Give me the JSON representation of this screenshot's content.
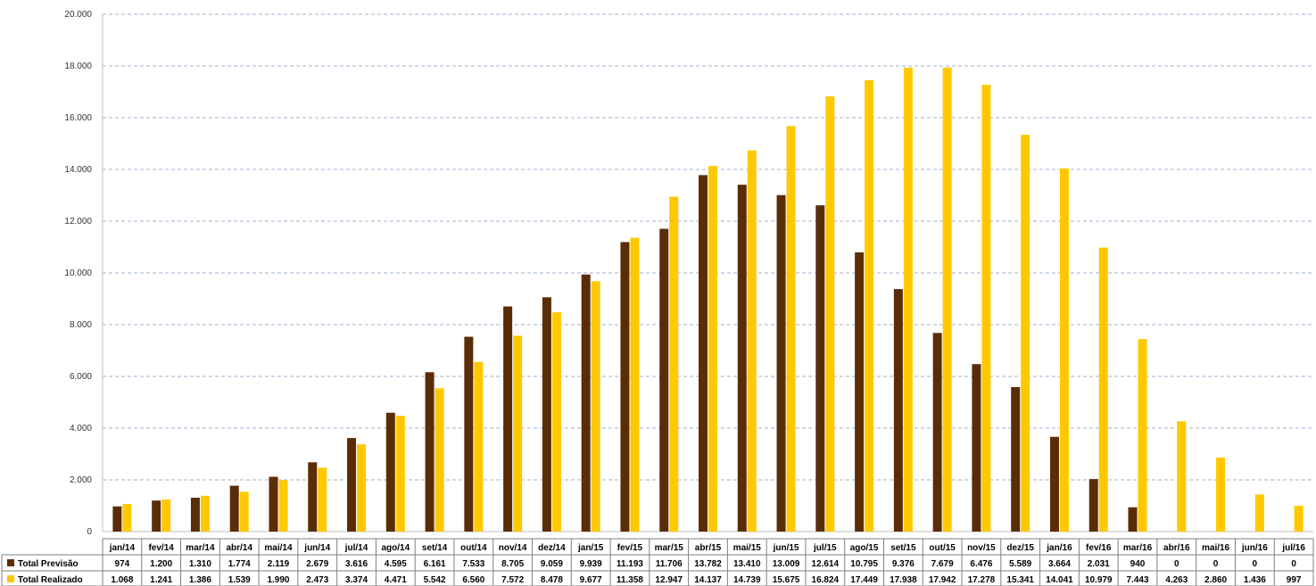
{
  "chart_data": {
    "type": "bar",
    "categories": [
      "jan/14",
      "fev/14",
      "mar/14",
      "abr/14",
      "mai/14",
      "jun/14",
      "jul/14",
      "ago/14",
      "set/14",
      "out/14",
      "nov/14",
      "dez/14",
      "jan/15",
      "fev/15",
      "mar/15",
      "abr/15",
      "mai/15",
      "jun/15",
      "jul/15",
      "ago/15",
      "set/15",
      "out/15",
      "nov/15",
      "dez/15",
      "jan/16",
      "fev/16",
      "mar/16",
      "abr/16",
      "mai/16",
      "jun/16",
      "jul/16"
    ],
    "series": [
      {
        "name": "Total Previsão",
        "color": "#5a2d07",
        "values": [
          974,
          1200,
          1310,
          1774,
          2119,
          2679,
          3616,
          4595,
          6161,
          7533,
          8705,
          9059,
          9939,
          11193,
          11706,
          13782,
          13410,
          13009,
          12614,
          10795,
          9376,
          7679,
          6476,
          5589,
          3664,
          2031,
          940,
          0,
          0,
          0,
          0
        ],
        "labels": [
          "974",
          "1.200",
          "1.310",
          "1.774",
          "2.119",
          "2.679",
          "3.616",
          "4.595",
          "6.161",
          "7.533",
          "8.705",
          "9.059",
          "9.939",
          "11.193",
          "11.706",
          "13.782",
          "13.410",
          "13.009",
          "12.614",
          "10.795",
          "9.376",
          "7.679",
          "6.476",
          "5.589",
          "3.664",
          "2.031",
          "940",
          "0",
          "0",
          "0",
          "0"
        ]
      },
      {
        "name": "Total Realizado",
        "color": "#ffc800",
        "values": [
          1068,
          1241,
          1386,
          1539,
          1990,
          2473,
          3374,
          4471,
          5542,
          6560,
          7572,
          8478,
          9677,
          11358,
          12947,
          14137,
          14739,
          15675,
          16824,
          17449,
          17938,
          17942,
          17278,
          15341,
          14041,
          10979,
          7443,
          4263,
          2860,
          1436,
          997
        ],
        "labels": [
          "1.068",
          "1.241",
          "1.386",
          "1.539",
          "1.990",
          "2.473",
          "3.374",
          "4.471",
          "5.542",
          "6.560",
          "7.572",
          "8.478",
          "9.677",
          "11.358",
          "12.947",
          "14.137",
          "14.739",
          "15.675",
          "16.824",
          "17.449",
          "17.938",
          "17.942",
          "17.278",
          "15.341",
          "14.041",
          "10.979",
          "7.443",
          "4.263",
          "2.860",
          "1.436",
          "997"
        ]
      }
    ],
    "yticks": [
      0,
      2000,
      4000,
      6000,
      8000,
      10000,
      12000,
      14000,
      16000,
      18000,
      20000
    ],
    "ytick_labels": [
      "0",
      "2.000",
      "4.000",
      "6.000",
      "8.000",
      "10.000",
      "12.000",
      "14.000",
      "16.000",
      "18.000",
      "20.000"
    ],
    "ylim": [
      0,
      20000
    ],
    "grid": true,
    "legend": "data-table-left",
    "title": "",
    "xlabel": "",
    "ylabel": ""
  }
}
